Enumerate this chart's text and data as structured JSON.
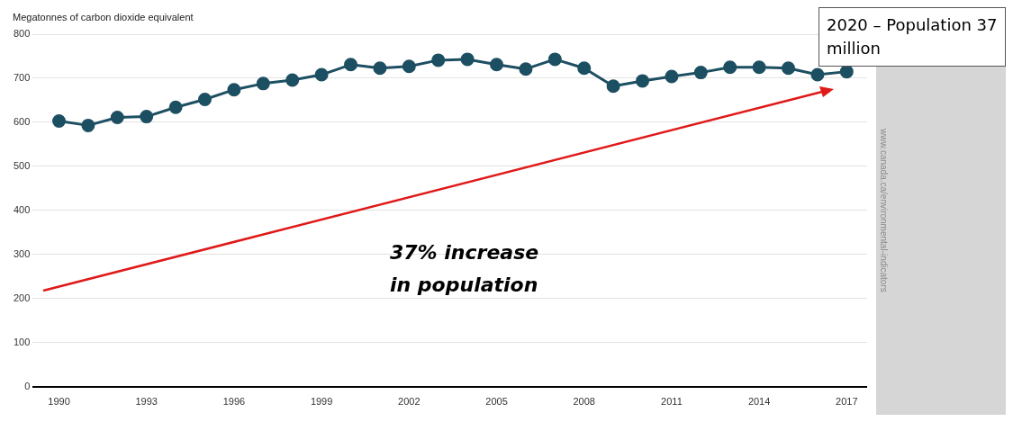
{
  "chart_data": {
    "type": "line",
    "ylabel": "Megatonnes of carbon dioxide equivalent",
    "x": [
      1990,
      1991,
      1992,
      1993,
      1994,
      1995,
      1996,
      1997,
      1998,
      1999,
      2000,
      2001,
      2002,
      2003,
      2004,
      2005,
      2006,
      2007,
      2008,
      2009,
      2010,
      2011,
      2012,
      2013,
      2014,
      2015,
      2016,
      2017
    ],
    "series": [
      {
        "color": "#1d4f63",
        "values": [
          603,
          593,
          611,
          613,
          634,
          652,
          674,
          688,
          696,
          708,
          731,
          723,
          727,
          741,
          743,
          731,
          721,
          743,
          723,
          682,
          694,
          704,
          713,
          725,
          725,
          723,
          708,
          715
        ]
      }
    ],
    "xlim": [
      1989.1,
      2017.7
    ],
    "xticks": [
      1990,
      1993,
      1996,
      1999,
      2002,
      2005,
      2008,
      2011,
      2014,
      2017
    ],
    "ylim": [
      0,
      800
    ],
    "yticks": [
      0,
      100,
      200,
      300,
      400,
      500,
      600,
      700,
      800
    ],
    "grid": "y",
    "marker": "circle",
    "line_style": "solid",
    "legend": false,
    "annotations": [
      "2020 – Population 37 million",
      "37% increase in population",
      "www.canada.ca/environmental-indicators"
    ]
  }
}
